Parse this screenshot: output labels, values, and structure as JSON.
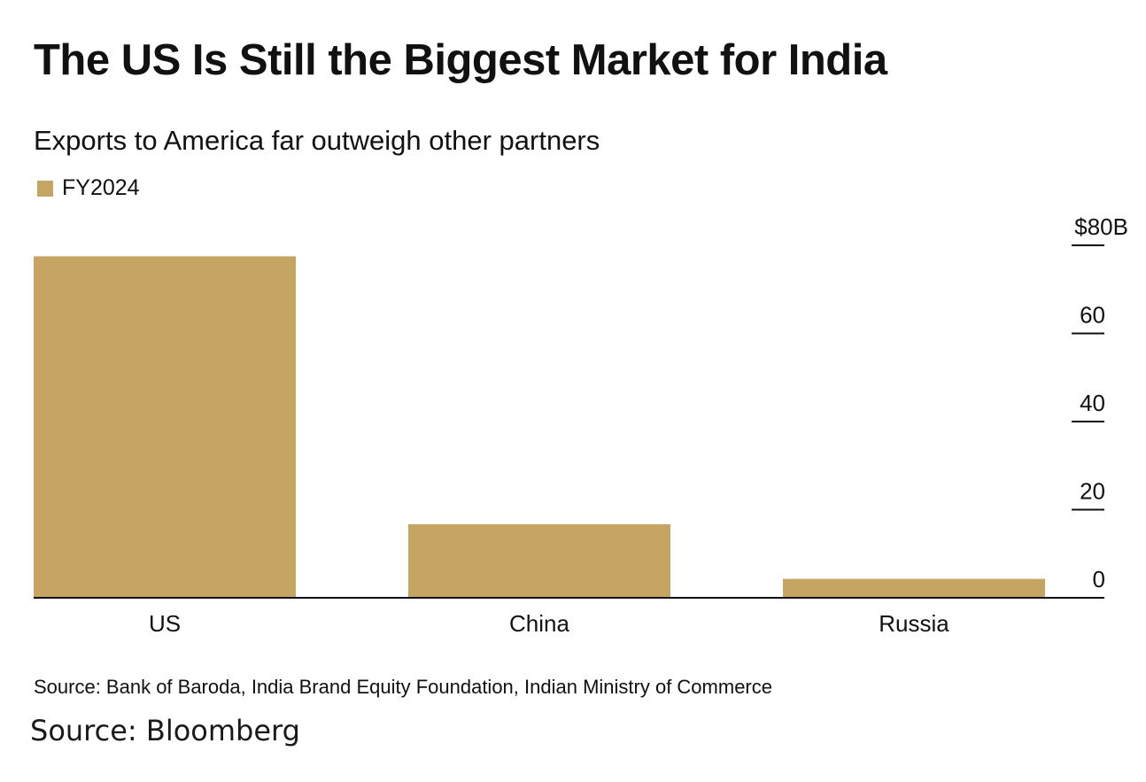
{
  "title": "The US Is Still the Biggest Market for India",
  "subtitle": "Exports to America far outweigh other partners",
  "source": "Source: Bank of Baroda, India Brand Equity Foundation, Indian Ministry of Commerce",
  "credit": "Source: Bloomberg",
  "colors": {
    "bar": "#c6a563",
    "axis": "#111111"
  },
  "chart_data": {
    "type": "bar",
    "categories": [
      "US",
      "China",
      "Russia"
    ],
    "series": [
      {
        "name": "FY2024",
        "values": [
          77.5,
          16.7,
          4.3
        ]
      }
    ],
    "ylim": [
      0,
      80
    ],
    "yticks": [
      0,
      20,
      40,
      60,
      80
    ],
    "ytick_labels": [
      "0",
      "20",
      "40",
      "60",
      "$80B"
    ],
    "y_axis_side": "right",
    "grid": false,
    "legend_position": "top-left"
  }
}
